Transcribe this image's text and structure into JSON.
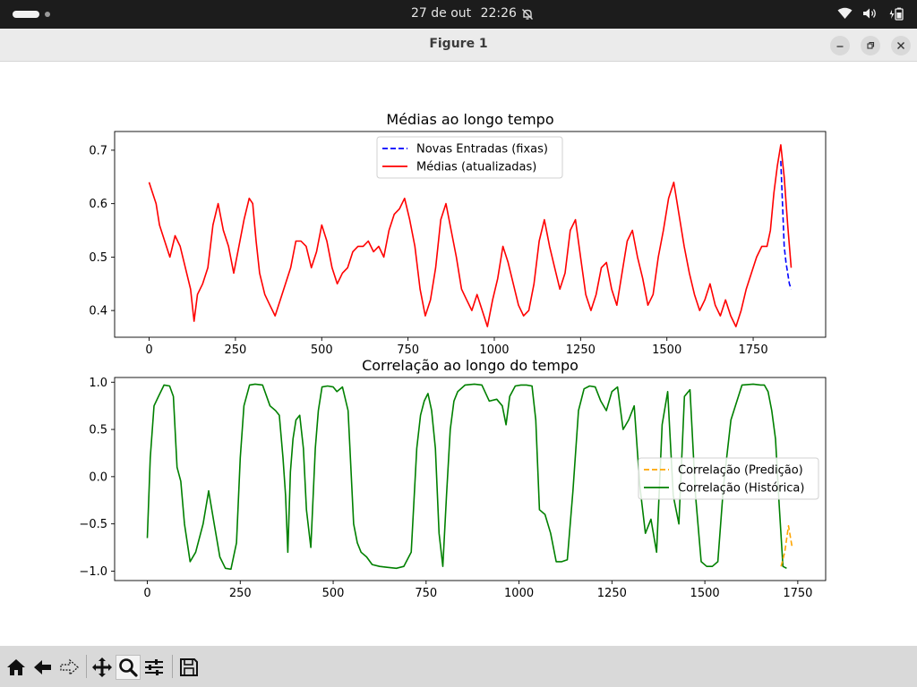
{
  "system_bar": {
    "date": "27 de out",
    "time": "22:26"
  },
  "window": {
    "title": "Figure 1"
  },
  "toolbar": {
    "buttons": [
      "home-icon",
      "back-arrow-icon",
      "forward-arrow-icon",
      "pan-icon",
      "zoom-icon",
      "subplots-config-icon",
      "save-icon"
    ],
    "active": "zoom-icon"
  },
  "chart_data": [
    {
      "type": "line",
      "title": "Médias ao longo tempo",
      "xlim": [
        -100,
        1960
      ],
      "ylim": [
        0.35,
        0.735
      ],
      "xticks": [
        0,
        250,
        500,
        750,
        1000,
        1250,
        1500,
        1750
      ],
      "yticks": [
        0.4,
        0.5,
        0.6,
        0.7
      ],
      "xtick_labels": [
        "0",
        "250",
        "500",
        "750",
        "1000",
        "1250",
        "1500",
        "1750"
      ],
      "ytick_labels": [
        "0.4",
        "0.5",
        "0.6",
        "0.7"
      ],
      "legend_position": "upper center",
      "series": [
        {
          "name": "Novas Entradas (fixas)",
          "color": "#0000ff",
          "style": "dashed",
          "x": [
            1830,
            1835,
            1840,
            1845,
            1850,
            1855,
            1860
          ],
          "y": [
            0.68,
            0.6,
            0.52,
            0.49,
            0.47,
            0.45,
            0.44
          ]
        },
        {
          "name": "Médias (atualizadas)",
          "color": "#ff0000",
          "style": "solid",
          "x": [
            0,
            10,
            20,
            30,
            45,
            60,
            75,
            90,
            105,
            120,
            130,
            140,
            155,
            170,
            185,
            200,
            215,
            230,
            245,
            260,
            275,
            290,
            300,
            310,
            320,
            335,
            350,
            365,
            380,
            395,
            410,
            425,
            440,
            455,
            470,
            485,
            500,
            515,
            530,
            545,
            560,
            575,
            590,
            605,
            620,
            635,
            650,
            665,
            680,
            695,
            710,
            725,
            740,
            755,
            770,
            785,
            800,
            815,
            830,
            845,
            860,
            875,
            890,
            905,
            920,
            935,
            950,
            965,
            980,
            995,
            1010,
            1025,
            1040,
            1055,
            1070,
            1085,
            1100,
            1115,
            1130,
            1145,
            1160,
            1175,
            1190,
            1205,
            1220,
            1235,
            1250,
            1265,
            1280,
            1295,
            1310,
            1325,
            1340,
            1355,
            1370,
            1385,
            1400,
            1415,
            1430,
            1445,
            1460,
            1475,
            1490,
            1505,
            1520,
            1535,
            1550,
            1565,
            1580,
            1595,
            1610,
            1625,
            1640,
            1655,
            1670,
            1685,
            1700,
            1715,
            1730,
            1745,
            1760,
            1775,
            1790,
            1800,
            1810,
            1820,
            1830,
            1840,
            1850,
            1860
          ],
          "y": [
            0.64,
            0.62,
            0.6,
            0.56,
            0.53,
            0.5,
            0.54,
            0.52,
            0.48,
            0.44,
            0.38,
            0.43,
            0.45,
            0.48,
            0.56,
            0.6,
            0.55,
            0.52,
            0.47,
            0.52,
            0.57,
            0.61,
            0.6,
            0.53,
            0.47,
            0.43,
            0.41,
            0.39,
            0.42,
            0.45,
            0.48,
            0.53,
            0.53,
            0.52,
            0.48,
            0.51,
            0.56,
            0.53,
            0.48,
            0.45,
            0.47,
            0.48,
            0.51,
            0.52,
            0.52,
            0.53,
            0.51,
            0.52,
            0.5,
            0.55,
            0.58,
            0.59,
            0.61,
            0.57,
            0.52,
            0.44,
            0.39,
            0.42,
            0.48,
            0.57,
            0.6,
            0.55,
            0.5,
            0.44,
            0.42,
            0.4,
            0.43,
            0.4,
            0.37,
            0.42,
            0.46,
            0.52,
            0.49,
            0.45,
            0.41,
            0.39,
            0.4,
            0.45,
            0.53,
            0.57,
            0.52,
            0.48,
            0.44,
            0.47,
            0.55,
            0.57,
            0.5,
            0.43,
            0.4,
            0.43,
            0.48,
            0.49,
            0.44,
            0.41,
            0.47,
            0.53,
            0.55,
            0.5,
            0.46,
            0.41,
            0.43,
            0.5,
            0.55,
            0.61,
            0.64,
            0.58,
            0.52,
            0.47,
            0.43,
            0.4,
            0.42,
            0.45,
            0.41,
            0.39,
            0.42,
            0.39,
            0.37,
            0.4,
            0.44,
            0.47,
            0.5,
            0.52,
            0.52,
            0.55,
            0.62,
            0.67,
            0.71,
            0.65,
            0.56,
            0.48
          ]
        }
      ]
    },
    {
      "type": "line",
      "title": "Correlação ao longo do tempo",
      "xlim": [
        -88,
        1825
      ],
      "ylim": [
        -1.1,
        1.05
      ],
      "xticks": [
        0,
        250,
        500,
        750,
        1000,
        1250,
        1500,
        1750
      ],
      "yticks": [
        -1.0,
        -0.5,
        0.0,
        0.5,
        1.0
      ],
      "xtick_labels": [
        "0",
        "250",
        "500",
        "750",
        "1000",
        "1250",
        "1500",
        "1750"
      ],
      "ytick_labels": [
        "−1.0",
        "−0.5",
        "0.0",
        "0.5",
        "1.0"
      ],
      "legend_position": "center right",
      "series": [
        {
          "name": "Correlação (Predição)",
          "color": "#ffa500",
          "style": "dashed",
          "x": [
            1705,
            1715,
            1725,
            1735
          ],
          "y": [
            -0.95,
            -0.8,
            -0.52,
            -0.75
          ]
        },
        {
          "name": "Correlação (Histórica)",
          "color": "#008000",
          "style": "solid",
          "x": [
            0,
            8,
            18,
            30,
            45,
            60,
            70,
            80,
            90,
            100,
            115,
            130,
            150,
            165,
            180,
            195,
            210,
            225,
            240,
            250,
            260,
            275,
            290,
            310,
            330,
            345,
            355,
            365,
            372,
            378,
            385,
            392,
            400,
            410,
            420,
            428,
            440,
            452,
            460,
            470,
            485,
            500,
            510,
            525,
            540,
            555,
            565,
            575,
            590,
            605,
            625,
            645,
            670,
            690,
            710,
            725,
            735,
            745,
            755,
            765,
            775,
            785,
            795,
            805,
            815,
            825,
            835,
            855,
            880,
            900,
            920,
            940,
            955,
            965,
            975,
            990,
            1005,
            1020,
            1035,
            1045,
            1055,
            1070,
            1085,
            1100,
            1115,
            1130,
            1145,
            1160,
            1175,
            1190,
            1205,
            1220,
            1235,
            1250,
            1265,
            1280,
            1295,
            1310,
            1325,
            1340,
            1355,
            1370,
            1385,
            1400,
            1415,
            1430,
            1445,
            1460,
            1475,
            1490,
            1505,
            1520,
            1535,
            1550,
            1570,
            1600,
            1630,
            1650,
            1660,
            1670,
            1680,
            1690,
            1700,
            1710,
            1720
          ],
          "y": [
            -0.65,
            0.2,
            0.75,
            0.85,
            0.97,
            0.96,
            0.85,
            0.1,
            -0.05,
            -0.5,
            -0.9,
            -0.8,
            -0.5,
            -0.15,
            -0.5,
            -0.85,
            -0.97,
            -0.98,
            -0.7,
            0.2,
            0.75,
            0.97,
            0.98,
            0.97,
            0.75,
            0.7,
            0.65,
            0.2,
            -0.2,
            -0.8,
            0.05,
            0.4,
            0.6,
            0.65,
            0.3,
            -0.35,
            -0.75,
            0.3,
            0.7,
            0.95,
            0.96,
            0.95,
            0.9,
            0.95,
            0.7,
            -0.5,
            -0.7,
            -0.8,
            -0.85,
            -0.93,
            -0.95,
            -0.96,
            -0.97,
            -0.95,
            -0.8,
            0.3,
            0.65,
            0.8,
            0.88,
            0.7,
            0.3,
            -0.6,
            -0.95,
            -0.2,
            0.5,
            0.8,
            0.9,
            0.97,
            0.98,
            0.97,
            0.8,
            0.82,
            0.75,
            0.55,
            0.85,
            0.96,
            0.97,
            0.97,
            0.96,
            0.6,
            -0.35,
            -0.4,
            -0.6,
            -0.9,
            -0.9,
            -0.88,
            -0.15,
            0.7,
            0.93,
            0.96,
            0.95,
            0.8,
            0.7,
            0.9,
            0.95,
            0.5,
            0.6,
            0.75,
            -0.1,
            -0.6,
            -0.45,
            -0.8,
            0.55,
            0.9,
            -0.2,
            -0.5,
            0.85,
            0.92,
            -0.2,
            -0.9,
            -0.95,
            -0.95,
            -0.9,
            -0.1,
            0.6,
            0.97,
            0.98,
            0.97,
            0.97,
            0.9,
            0.7,
            0.4,
            -0.3,
            -0.95,
            -0.97
          ]
        }
      ]
    }
  ]
}
